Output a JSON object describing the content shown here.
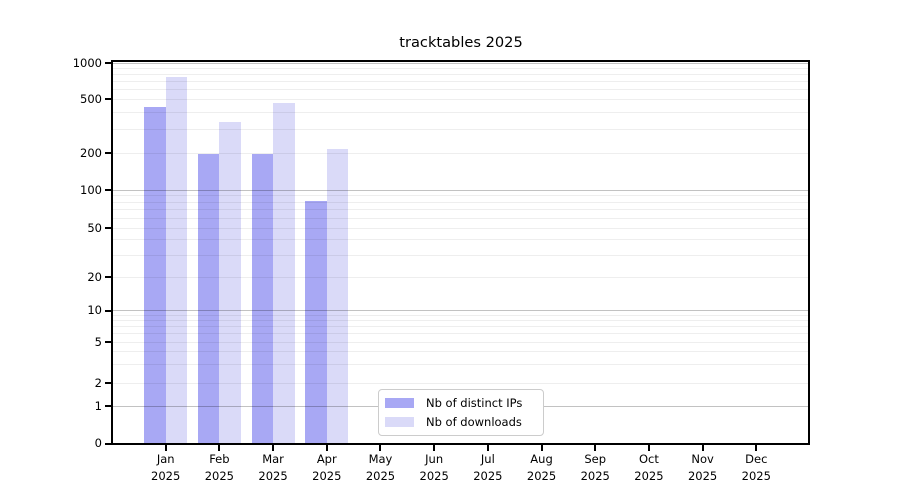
{
  "title": "tracktables 2025",
  "chart_data": {
    "type": "bar",
    "title": "tracktables 2025",
    "categories": [
      "Jan",
      "Feb",
      "Mar",
      "Apr",
      "May",
      "Jun",
      "Jul",
      "Aug",
      "Sep",
      "Oct",
      "Nov",
      "Dec"
    ],
    "x_year": "2025",
    "series": [
      {
        "name": "Nb of distinct IPs",
        "color": "#a8a8f4",
        "values": [
          440,
          195,
          196,
          82,
          0,
          0,
          0,
          0,
          0,
          0,
          0,
          0
        ]
      },
      {
        "name": "Nb of downloads",
        "color": "#dadaf8",
        "values": [
          760,
          340,
          470,
          215,
          0,
          0,
          0,
          0,
          0,
          0,
          0,
          0
        ]
      }
    ],
    "yticks": [
      0,
      1,
      2,
      5,
      10,
      20,
      50,
      100,
      200,
      500,
      1000
    ],
    "yscale": "log above 1, zero pinned at baseline",
    "ylim": [
      0,
      1050
    ],
    "xlabel": "",
    "ylabel": "",
    "grid": "horizontal major (powers of 10) and minor (2-9 per decade)",
    "legend_position": "inside plot, lower center"
  },
  "legend": {
    "items": [
      {
        "label": "Nb of distinct IPs"
      },
      {
        "label": "Nb of downloads"
      }
    ]
  }
}
